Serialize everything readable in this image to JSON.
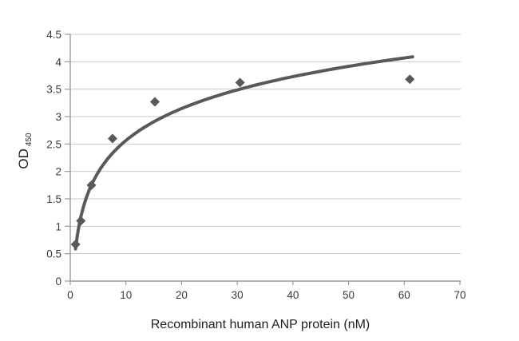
{
  "chart_data": {
    "type": "scatter",
    "title": "",
    "xlabel": "Recombinant human ANP protein (nM)",
    "ylabel": "OD",
    "ylabel_subscript": "450",
    "xlim": [
      0,
      70
    ],
    "ylim": [
      0,
      4.5
    ],
    "x_ticks": [
      0,
      10,
      20,
      30,
      40,
      50,
      60,
      70
    ],
    "y_ticks": [
      0,
      0.5,
      1,
      1.5,
      2,
      2.5,
      3,
      3.5,
      4,
      4.5
    ],
    "grid": "horizontal-only",
    "legend": "none",
    "series": [
      {
        "name": "OD450 data points",
        "kind": "scatter",
        "marker": "diamond",
        "color": "#595959",
        "points": [
          {
            "x": 0.95,
            "y": 0.67
          },
          {
            "x": 1.9,
            "y": 1.1
          },
          {
            "x": 3.8,
            "y": 1.75
          },
          {
            "x": 7.6,
            "y": 2.6
          },
          {
            "x": 15.2,
            "y": 3.27
          },
          {
            "x": 30.5,
            "y": 3.62
          },
          {
            "x": 61.0,
            "y": 3.68
          }
        ]
      },
      {
        "name": "logarithmic trend line",
        "kind": "line",
        "color": "#595959",
        "stroke_width": 4,
        "fit": {
          "form": "y = a*ln(x) + b",
          "a": 0.84,
          "b": 0.63,
          "x_start": 0.95,
          "x_end": 61.5
        }
      }
    ],
    "colors": {
      "background": "#ffffff",
      "axis_line": "#9a9a9a",
      "gridline": "#c9c9c9",
      "tick_label": "#3a3a3a",
      "axis_title": "#1f1f1f",
      "marker": "#595959"
    }
  }
}
